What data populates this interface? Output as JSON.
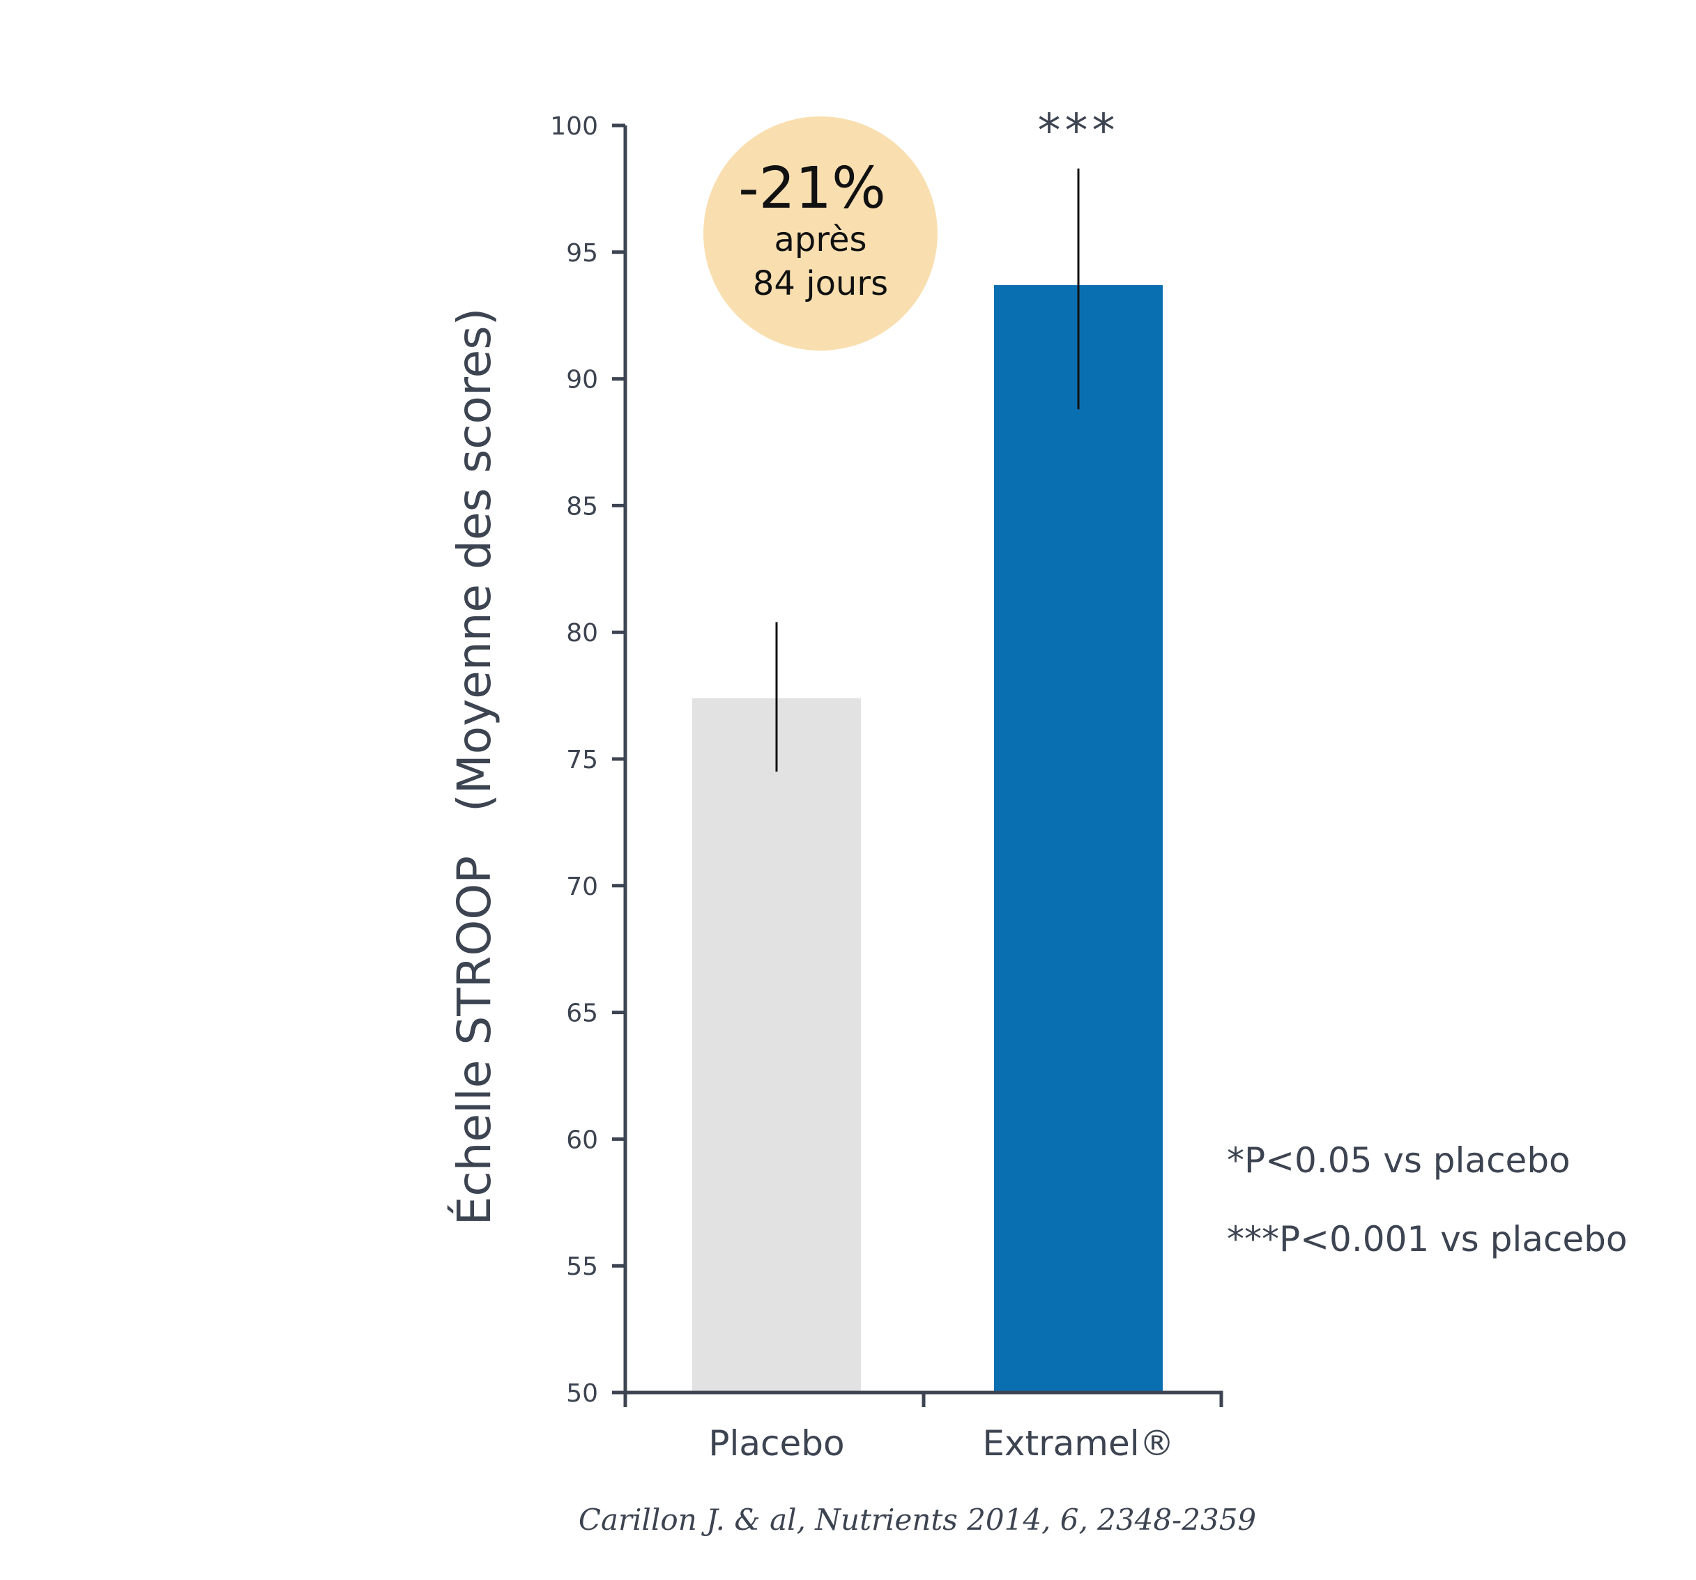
{
  "chart_data": {
    "type": "bar",
    "categories": [
      "Placebo",
      "Extramel®"
    ],
    "values": [
      77.4,
      93.7
    ],
    "error_low": [
      74.5,
      88.8
    ],
    "error_high": [
      80.4,
      98.3
    ],
    "ylabel": "Échelle STROOP   (Moyenne des scores)",
    "ylim": [
      50,
      100
    ],
    "yticks": [
      "50",
      "55",
      "60",
      "65",
      "70",
      "75",
      "80",
      "85",
      "90",
      "95",
      "100"
    ],
    "grid": false,
    "significance": {
      "category": "Extramel®",
      "label": "***"
    },
    "badge": {
      "main": "-21%",
      "line1": "après",
      "line2": "84 jours"
    },
    "notes": [
      "*P<0.05 vs placebo",
      "***P<0.001 vs placebo"
    ],
    "source": "Carillon J. & al, Nutrients 2014, 6, 2348-2359"
  },
  "colors": {
    "placebo_bar": "#e2e2e2",
    "extramel_bar": "#0a6fb1",
    "axis": "#3d4451",
    "badge_fill": "#f9dfb0",
    "error_bar": "#111111"
  }
}
